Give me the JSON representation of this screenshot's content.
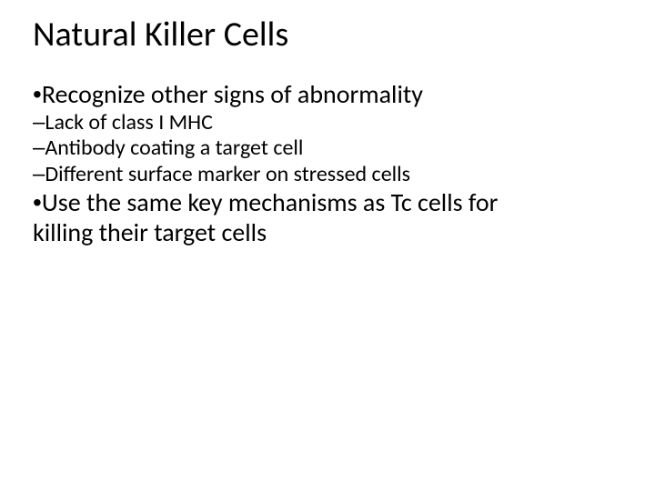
{
  "title": "Natural Killer Cells",
  "bullets": {
    "b1": "Recognize other signs of abnormality",
    "b1_sub1": "Lack of class I MHC",
    "b1_sub2": "Antibody coating a target cell",
    "b1_sub3": "Different surface marker on stressed cells",
    "b2_line1": "Use the same key mechanisms as Tc cells for",
    "b2_line2": "killing their target cells"
  },
  "glyphs": {
    "dot": "•",
    "dash": "–"
  },
  "colors": {
    "text": "#000000",
    "background": "#ffffff"
  },
  "typography": {
    "title_fontsize": 38,
    "lvl1_fontsize": 28,
    "lvl2_fontsize": 24,
    "font_family": "Calibri"
  }
}
